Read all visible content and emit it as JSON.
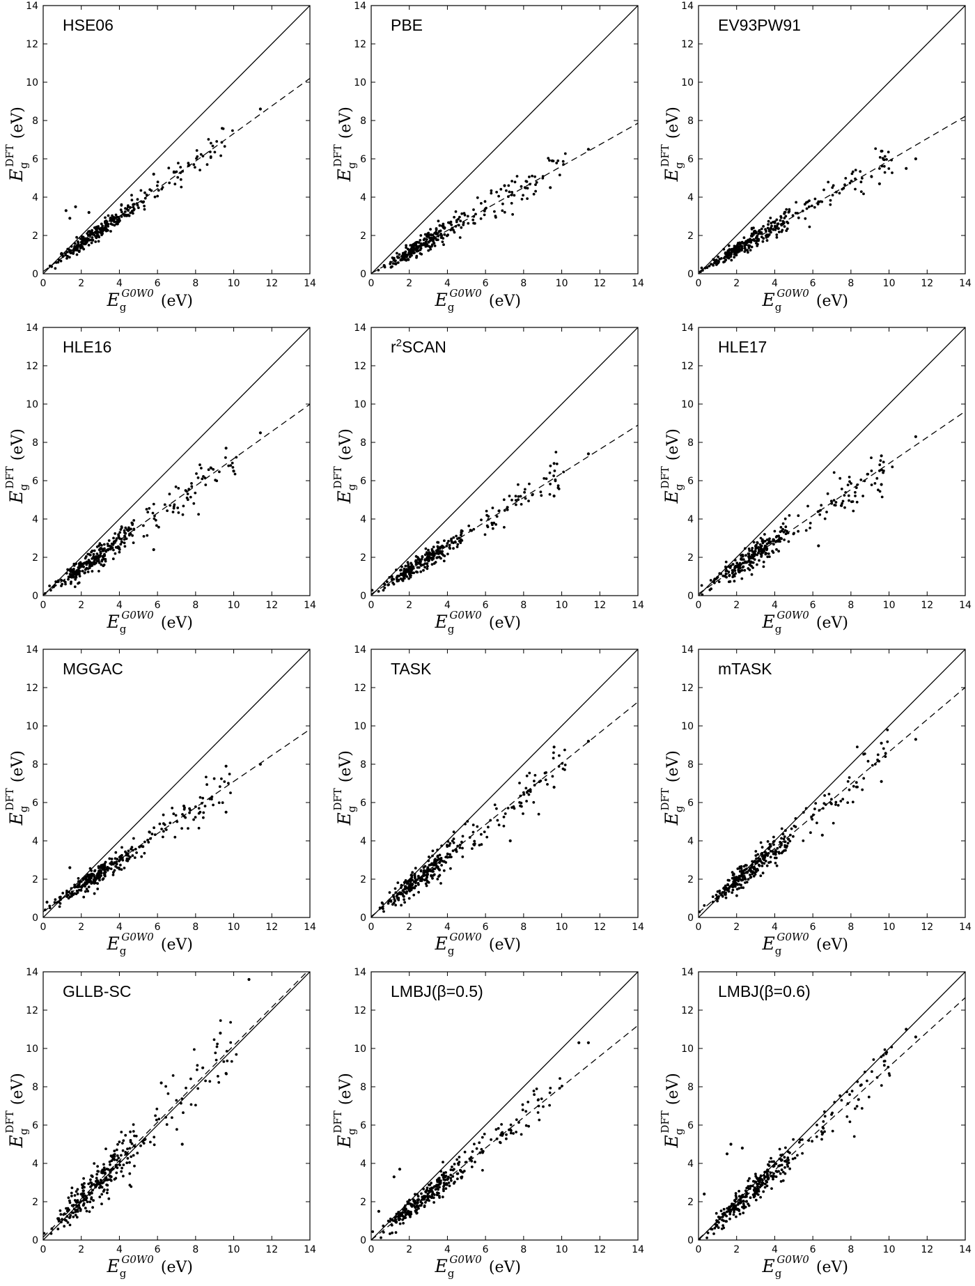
{
  "figure": {
    "xlabel": {
      "main": "E",
      "sub": "g",
      "sup": "G0W0",
      "unit": "(eV)"
    },
    "ylabel": {
      "main": "E",
      "sub": "g",
      "sup": "DFT",
      "unit": "(eV)"
    },
    "ticks": [
      "0",
      "2",
      "4",
      "6",
      "8",
      "10",
      "12",
      "14"
    ]
  },
  "chart_data": [
    {
      "type": "scatter",
      "title": "HSE06",
      "xlim": [
        0,
        14
      ],
      "ylim": [
        0,
        14
      ],
      "fit_slope": 0.72,
      "fit_intercept": 0.12,
      "noise": 0.28,
      "outliers": [
        [
          1.2,
          3.3
        ],
        [
          1.7,
          3.5
        ],
        [
          1.4,
          2.9
        ],
        [
          2.4,
          3.2
        ],
        [
          5.8,
          5.2
        ],
        [
          11.4,
          8.6
        ]
      ],
      "xlabel": "E_g^{G0W0} (eV)",
      "ylabel": "E_g^{DFT} (eV)"
    },
    {
      "type": "scatter",
      "title": "PBE",
      "xlim": [
        0,
        14
      ],
      "ylim": [
        0,
        14
      ],
      "fit_slope": 0.56,
      "fit_intercept": 0.02,
      "noise": 0.3,
      "outliers": [
        [
          9.5,
          5.9
        ],
        [
          11.4,
          6.5
        ],
        [
          9.4,
          4.5
        ],
        [
          7.0,
          4.6
        ]
      ],
      "xlabel": "E_g^{G0W0} (eV)",
      "ylabel": "E_g^{DFT} (eV)"
    },
    {
      "type": "scatter",
      "title": "EV93PW91",
      "xlim": [
        0,
        14
      ],
      "ylim": [
        0,
        14
      ],
      "fit_slope": 0.58,
      "fit_intercept": 0.1,
      "noise": 0.33,
      "outliers": [
        [
          9.6,
          6.4
        ],
        [
          11.4,
          6.0
        ],
        [
          10.9,
          5.5
        ],
        [
          9.5,
          4.7
        ]
      ],
      "xlabel": "E_g^{G0W0} (eV)",
      "ylabel": "E_g^{DFT} (eV)"
    },
    {
      "type": "scatter",
      "title": "HLE16",
      "xlim": [
        0,
        14
      ],
      "ylim": [
        0,
        14
      ],
      "fit_slope": 0.71,
      "fit_intercept": 0.05,
      "noise": 0.4,
      "outliers": [
        [
          9.6,
          7.7
        ],
        [
          11.4,
          8.5
        ],
        [
          5.8,
          2.4
        ],
        [
          10.0,
          6.5
        ]
      ],
      "xlabel": "E_g^{G0W0} (eV)",
      "ylabel": "E_g^{DFT} (eV)"
    },
    {
      "type": "scatter",
      "title": "r2SCAN",
      "xlim": [
        0,
        14
      ],
      "ylim": [
        0,
        14
      ],
      "fit_slope": 0.63,
      "fit_intercept": 0.08,
      "noise": 0.3,
      "outliers": [
        [
          9.6,
          6.9
        ],
        [
          11.4,
          7.4
        ],
        [
          9.6,
          5.2
        ]
      ],
      "xlabel": "E_g^{G0W0} (eV)",
      "ylabel": "E_g^{DFT} (eV)"
    },
    {
      "type": "scatter",
      "title": "HLE17",
      "xlim": [
        0,
        14
      ],
      "ylim": [
        0,
        14
      ],
      "fit_slope": 0.68,
      "fit_intercept": 0.1,
      "noise": 0.42,
      "outliers": [
        [
          9.6,
          7.3
        ],
        [
          11.4,
          8.3
        ],
        [
          6.3,
          2.6
        ],
        [
          9.6,
          5.8
        ]
      ],
      "xlabel": "E_g^{G0W0} (eV)",
      "ylabel": "E_g^{DFT} (eV)"
    },
    {
      "type": "scatter",
      "title": "MGGAC",
      "xlim": [
        0,
        14
      ],
      "ylim": [
        0,
        14
      ],
      "fit_slope": 0.68,
      "fit_intercept": 0.3,
      "noise": 0.36,
      "outliers": [
        [
          0.2,
          0.8
        ],
        [
          1.4,
          2.6
        ],
        [
          9.6,
          7.9
        ],
        [
          9.6,
          5.5
        ],
        [
          11.4,
          8.0
        ]
      ],
      "xlabel": "E_g^{G0W0} (eV)",
      "ylabel": "E_g^{DFT} (eV)"
    },
    {
      "type": "scatter",
      "title": "TASK",
      "xlim": [
        0,
        14
      ],
      "ylim": [
        0,
        14
      ],
      "fit_slope": 0.8,
      "fit_intercept": 0.05,
      "noise": 0.45,
      "outliers": [
        [
          9.6,
          8.9
        ],
        [
          11.4,
          9.2
        ],
        [
          9.6,
          6.8
        ],
        [
          7.3,
          4.0
        ]
      ],
      "xlabel": "E_g^{G0W0} (eV)",
      "ylabel": "E_g^{DFT} (eV)"
    },
    {
      "type": "scatter",
      "title": "mTASK",
      "xlim": [
        0,
        14
      ],
      "ylim": [
        0,
        14
      ],
      "fit_slope": 0.84,
      "fit_intercept": 0.25,
      "noise": 0.45,
      "outliers": [
        [
          9.6,
          9.1
        ],
        [
          11.4,
          9.3
        ],
        [
          9.6,
          7.1
        ],
        [
          6.5,
          4.3
        ]
      ],
      "xlabel": "E_g^{G0W0} (eV)",
      "ylabel": "E_g^{DFT} (eV)"
    },
    {
      "type": "scatter",
      "title": "GLLB-SC",
      "xlim": [
        0,
        14
      ],
      "ylim": [
        0,
        14
      ],
      "fit_slope": 1.0,
      "fit_intercept": 0.15,
      "noise": 0.65,
      "outliers": [
        [
          10.8,
          13.6
        ],
        [
          9.3,
          10.8
        ],
        [
          7.3,
          5.0
        ],
        [
          6.2,
          8.2
        ],
        [
          9.6,
          8.7
        ]
      ],
      "xlabel": "E_g^{G0W0} (eV)",
      "ylabel": "E_g^{DFT} (eV)"
    },
    {
      "type": "scatter",
      "title": "LMBJ(β=0.5)",
      "xlim": [
        0,
        14
      ],
      "ylim": [
        0,
        14
      ],
      "fit_slope": 0.8,
      "fit_intercept": 0.0,
      "noise": 0.38,
      "outliers": [
        [
          1.5,
          3.7
        ],
        [
          1.2,
          3.3
        ],
        [
          0.4,
          1.5
        ],
        [
          10.9,
          10.3
        ],
        [
          11.4,
          10.3
        ]
      ],
      "xlabel": "E_g^{G0W0} (eV)",
      "ylabel": "E_g^{DFT} (eV)"
    },
    {
      "type": "scatter",
      "title": "LMBJ(β=0.6)",
      "xlim": [
        0,
        14
      ],
      "ylim": [
        0,
        14
      ],
      "fit_slope": 0.9,
      "fit_intercept": 0.05,
      "noise": 0.45,
      "outliers": [
        [
          1.7,
          5.0
        ],
        [
          1.5,
          4.5
        ],
        [
          0.3,
          2.4
        ],
        [
          2.3,
          4.8
        ],
        [
          10.9,
          11.0
        ],
        [
          11.4,
          10.6
        ]
      ],
      "xlabel": "E_g^{G0W0} (eV)",
      "ylabel": "E_g^{DFT} (eV)"
    }
  ]
}
